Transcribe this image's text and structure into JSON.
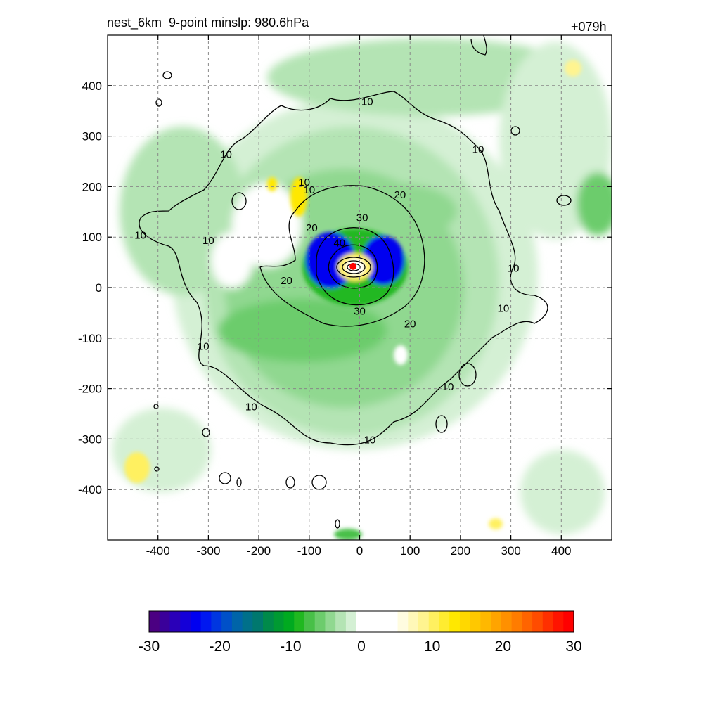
{
  "header": {
    "title_left": "nest_6km  9-point minslp: 980.6hPa",
    "title_right": "+079h"
  },
  "chart_data": {
    "type": "heatmap",
    "description_fields": "filled contours (shading) with overlaid black contour lines and storm center marker",
    "xlim": [
      -500,
      500
    ],
    "ylim": [
      -500,
      500
    ],
    "x_ticks": [
      -400,
      -300,
      -200,
      -100,
      0,
      100,
      200,
      300,
      400
    ],
    "y_ticks": [
      400,
      300,
      200,
      100,
      0,
      -100,
      -200,
      -300,
      -400
    ],
    "x_tick_labels": [
      "-400",
      "-300",
      "-200",
      "-100",
      "0",
      "100",
      "200",
      "300",
      "400"
    ],
    "y_tick_labels": [
      "400",
      "300",
      "200",
      "100",
      "0",
      "-100",
      "-200",
      "-300",
      "-400"
    ],
    "grid": true,
    "contour_levels": [
      10,
      20,
      30,
      40
    ],
    "contour_labels": [
      {
        "text": "10",
        "x": 15,
        "y": 370
      },
      {
        "text": "10",
        "x": 235,
        "y": 275
      },
      {
        "text": "10",
        "x": -265,
        "y": 265
      },
      {
        "text": "10",
        "x": -110,
        "y": 210
      },
      {
        "text": "10",
        "x": -100,
        "y": 195
      },
      {
        "text": "10",
        "x": -435,
        "y": 105
      },
      {
        "text": "10",
        "x": -300,
        "y": 95
      },
      {
        "text": "10",
        "x": 305,
        "y": 40
      },
      {
        "text": "10",
        "x": 285,
        "y": -40
      },
      {
        "text": "10",
        "x": -310,
        "y": -115
      },
      {
        "text": "10",
        "x": 175,
        "y": -195
      },
      {
        "text": "10",
        "x": -215,
        "y": -235
      },
      {
        "text": "10",
        "x": 20,
        "y": -300
      },
      {
        "text": "20",
        "x": 80,
        "y": 185
      },
      {
        "text": "20",
        "x": -95,
        "y": 120
      },
      {
        "text": "20",
        "x": -145,
        "y": 15
      },
      {
        "text": "20",
        "x": 100,
        "y": -70
      },
      {
        "text": "30",
        "x": 5,
        "y": 140
      },
      {
        "text": "30",
        "x": 0,
        "y": -45
      },
      {
        "text": "40",
        "x": -40,
        "y": 90
      }
    ],
    "center_marker": {
      "x": -13,
      "y": 42,
      "color": "#ff0000"
    },
    "colorbar": {
      "ticks": [
        -30,
        -20,
        -10,
        0,
        10,
        20,
        30
      ],
      "tick_labels": [
        "-30",
        "-20",
        "-10",
        "0",
        "10",
        "20",
        "30"
      ],
      "colors": [
        "#4b0082",
        "#3a009a",
        "#2a00b8",
        "#1400d8",
        "#0000f0",
        "#0018f0",
        "#0036e0",
        "#0050c8",
        "#0064a8",
        "#00708a",
        "#00786e",
        "#008a4a",
        "#009a32",
        "#00aa20",
        "#20b820",
        "#48c048",
        "#6ccc6c",
        "#90d890",
        "#b4e4b4",
        "#d4f0d4",
        "#ffffff",
        "#ffffff",
        "#ffffff",
        "#ffffff",
        "#fffce0",
        "#fff8b8",
        "#fff490",
        "#fff060",
        "#ffec30",
        "#ffe800",
        "#ffd800",
        "#ffc800",
        "#ffb800",
        "#ffa400",
        "#ff9000",
        "#ff7c00",
        "#ff6400",
        "#ff4c00",
        "#ff3000",
        "#ff1400",
        "#ff0000"
      ]
    }
  }
}
